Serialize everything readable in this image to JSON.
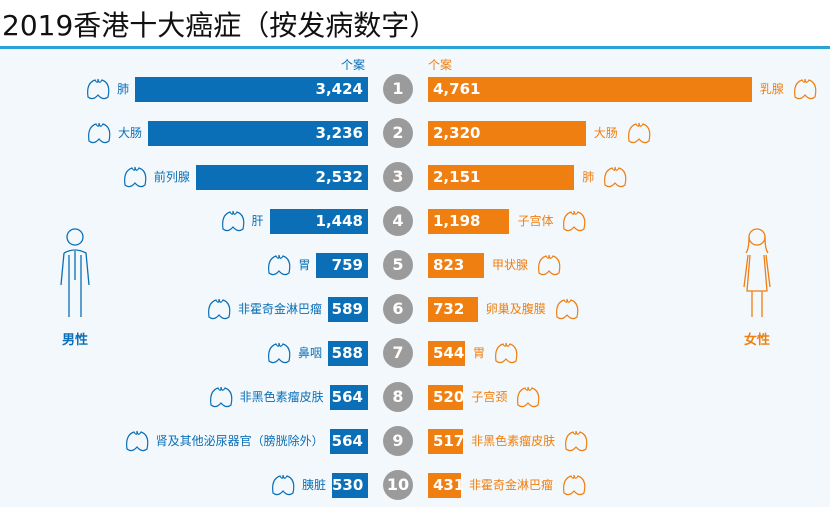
{
  "chart_data": {
    "type": "bar",
    "title": "2019香港十大癌症（按发病数字）",
    "unit_label_male": "个案",
    "unit_label_female": "个案",
    "male_label": "男性",
    "female_label": "女性",
    "colors": {
      "male": "#0a6fb6",
      "female": "#ef7f10",
      "rank": "#9b9b9b"
    },
    "ranks": [
      "1",
      "2",
      "3",
      "4",
      "5",
      "6",
      "7",
      "8",
      "9",
      "10"
    ],
    "series": [
      {
        "name": "男性",
        "values": [
          3424,
          3236,
          2532,
          1448,
          759,
          589,
          588,
          564,
          564,
          530
        ],
        "value_labels": [
          "3,424",
          "3,236",
          "2,532",
          "1,448",
          "759",
          "589",
          "588",
          "564",
          "564",
          "530"
        ],
        "categories": [
          "肺",
          "大肠",
          "前列腺",
          "肝",
          "胃",
          "非霍奇金淋巴瘤",
          "鼻咽",
          "非黑色素瘤皮肤",
          "肾及其他泌尿器官（膀胱除外）",
          "胰脏"
        ],
        "icons": [
          "lung-icon",
          "colon-icon",
          "prostate-icon",
          "liver-icon",
          "stomach-icon",
          "lymphoma-icon",
          "nose-icon",
          "skin-icon",
          "kidney-icon",
          "pancreas-icon"
        ]
      },
      {
        "name": "女性",
        "values": [
          4761,
          2320,
          2151,
          1198,
          823,
          732,
          544,
          520,
          517,
          431
        ],
        "value_labels": [
          "4,761",
          "2,320",
          "2,151",
          "1,198",
          "823",
          "732",
          "544",
          "520",
          "517",
          "431"
        ],
        "categories": [
          "乳腺",
          "大肠",
          "肺",
          "子宫体",
          "甲状腺",
          "卵巢及腹膜",
          "胃",
          "子宫颈",
          "非黑色素瘤皮肤",
          "非霍奇金淋巴瘤"
        ],
        "icons": [
          "breast-icon",
          "colon-icon",
          "lung-icon",
          "uterus-icon",
          "thyroid-icon",
          "ovary-icon",
          "stomach-icon",
          "uterus-icon",
          "skin-icon",
          "lymphoma-icon"
        ]
      }
    ]
  }
}
